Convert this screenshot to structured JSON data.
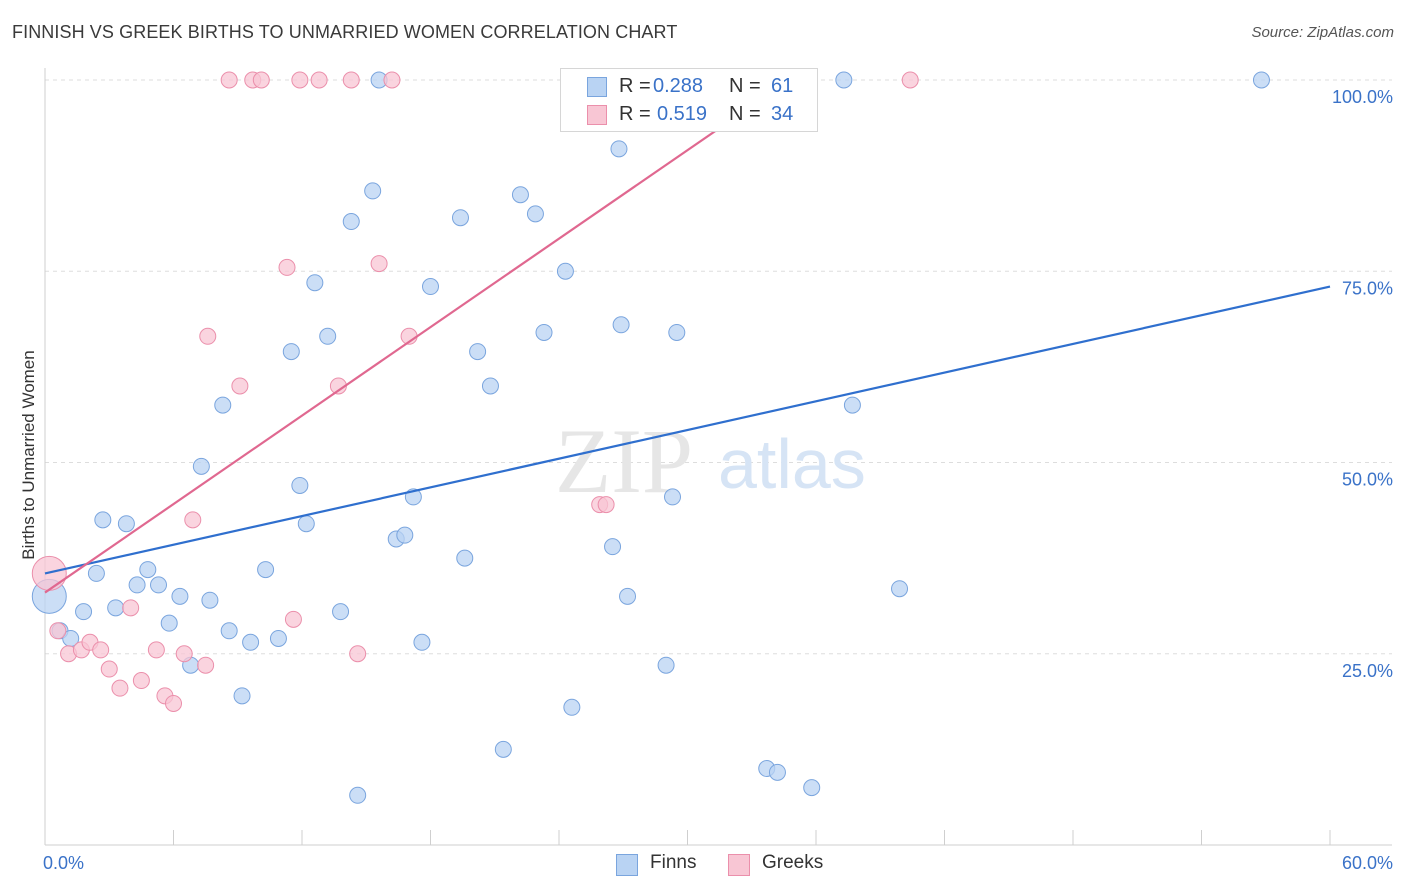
{
  "title": "FINNISH VS GREEK BIRTHS TO UNMARRIED WOMEN CORRELATION CHART",
  "source": "Source: ZipAtlas.com",
  "watermark": {
    "zip": "ZIP",
    "atlas": "atlas"
  },
  "legend": {
    "finns": {
      "r_label": "R =",
      "r_value": "0.288",
      "n_label": "N =",
      "n_value": "61"
    },
    "greeks": {
      "r_label": "R =",
      "r_value": "0.519",
      "n_label": "N =",
      "n_value": "34"
    }
  },
  "bottom_legend": {
    "finns": "Finns",
    "greeks": "Greeks"
  },
  "colors": {
    "finns_fill": "#b9d3f3",
    "finns_stroke": "#7aa5de",
    "finns_line": "#2f6fce",
    "greeks_fill": "#f8c6d4",
    "greeks_stroke": "#eb8fab",
    "greeks_line": "#e06890",
    "tick_label": "#3a72c8",
    "grid": "#dddddd"
  },
  "chart_data": {
    "type": "scatter",
    "title": "FINNISH VS GREEK BIRTHS TO UNMARRIED WOMEN CORRELATION CHART",
    "xlabel": "",
    "ylabel": "Births to Unmarried Women",
    "xlim": [
      0,
      60
    ],
    "ylim": [
      0,
      105
    ],
    "x_tick_labels": [
      "0.0%",
      "60.0%"
    ],
    "y_ticks": [
      25,
      50,
      75,
      100
    ],
    "y_tick_labels": [
      "25.0%",
      "50.0%",
      "75.0%",
      "100.0%"
    ],
    "series": [
      {
        "name": "Finns",
        "r": 0.288,
        "n": 61,
        "trend": {
          "x": [
            0,
            60
          ],
          "y": [
            35.5,
            73
          ]
        },
        "points": [
          {
            "x": 0.2,
            "y": 32.5,
            "big": true
          },
          {
            "x": 0.7,
            "y": 28
          },
          {
            "x": 1.2,
            "y": 27
          },
          {
            "x": 1.8,
            "y": 30.5
          },
          {
            "x": 2.4,
            "y": 35.5
          },
          {
            "x": 2.7,
            "y": 42.5
          },
          {
            "x": 3.3,
            "y": 31
          },
          {
            "x": 3.8,
            "y": 42
          },
          {
            "x": 4.3,
            "y": 34
          },
          {
            "x": 4.8,
            "y": 36
          },
          {
            "x": 5.3,
            "y": 34
          },
          {
            "x": 5.8,
            "y": 29
          },
          {
            "x": 6.3,
            "y": 32.5
          },
          {
            "x": 6.8,
            "y": 23.5
          },
          {
            "x": 7.3,
            "y": 49.5
          },
          {
            "x": 7.7,
            "y": 32
          },
          {
            "x": 8.3,
            "y": 57.5
          },
          {
            "x": 8.6,
            "y": 28
          },
          {
            "x": 9.2,
            "y": 19.5
          },
          {
            "x": 9.6,
            "y": 26.5
          },
          {
            "x": 10.3,
            "y": 36
          },
          {
            "x": 10.9,
            "y": 27
          },
          {
            "x": 11.5,
            "y": 64.5
          },
          {
            "x": 11.9,
            "y": 47
          },
          {
            "x": 12.2,
            "y": 42
          },
          {
            "x": 12.6,
            "y": 73.5
          },
          {
            "x": 13.2,
            "y": 66.5
          },
          {
            "x": 13.8,
            "y": 30.5
          },
          {
            "x": 14.3,
            "y": 81.5
          },
          {
            "x": 14.6,
            "y": 6.5
          },
          {
            "x": 15.3,
            "y": 85.5
          },
          {
            "x": 15.6,
            "y": 100
          },
          {
            "x": 16.4,
            "y": 40
          },
          {
            "x": 16.8,
            "y": 40.5
          },
          {
            "x": 17.2,
            "y": 45.5
          },
          {
            "x": 17.6,
            "y": 26.5
          },
          {
            "x": 18.0,
            "y": 73
          },
          {
            "x": 19.4,
            "y": 82
          },
          {
            "x": 19.6,
            "y": 37.5
          },
          {
            "x": 20.2,
            "y": 64.5
          },
          {
            "x": 20.8,
            "y": 60
          },
          {
            "x": 21.4,
            "y": 12.5
          },
          {
            "x": 22.2,
            "y": 85
          },
          {
            "x": 22.9,
            "y": 82.5
          },
          {
            "x": 23.3,
            "y": 67
          },
          {
            "x": 24.3,
            "y": 75
          },
          {
            "x": 24.6,
            "y": 18
          },
          {
            "x": 26.8,
            "y": 91
          },
          {
            "x": 26.5,
            "y": 39
          },
          {
            "x": 27.2,
            "y": 32.5
          },
          {
            "x": 26.9,
            "y": 68
          },
          {
            "x": 29.0,
            "y": 23.5
          },
          {
            "x": 29.5,
            "y": 67
          },
          {
            "x": 29.3,
            "y": 45.5
          },
          {
            "x": 33.7,
            "y": 10
          },
          {
            "x": 34.2,
            "y": 9.5
          },
          {
            "x": 35.8,
            "y": 7.5
          },
          {
            "x": 37.3,
            "y": 100
          },
          {
            "x": 37.7,
            "y": 57.5
          },
          {
            "x": 39.9,
            "y": 33.5
          },
          {
            "x": 56.8,
            "y": 100
          }
        ]
      },
      {
        "name": "Greeks",
        "r": 0.519,
        "n": 34,
        "trend": {
          "x": [
            0,
            34.5
          ],
          "y": [
            33,
            99.5
          ]
        },
        "points": [
          {
            "x": 0.2,
            "y": 35.5,
            "big": true
          },
          {
            "x": 0.6,
            "y": 28
          },
          {
            "x": 1.1,
            "y": 25
          },
          {
            "x": 1.7,
            "y": 25.5
          },
          {
            "x": 2.1,
            "y": 26.5
          },
          {
            "x": 2.6,
            "y": 25.5
          },
          {
            "x": 3.0,
            "y": 23
          },
          {
            "x": 3.5,
            "y": 20.5
          },
          {
            "x": 4.0,
            "y": 31
          },
          {
            "x": 4.5,
            "y": 21.5
          },
          {
            "x": 5.2,
            "y": 25.5
          },
          {
            "x": 5.6,
            "y": 19.5
          },
          {
            "x": 6.0,
            "y": 18.5
          },
          {
            "x": 6.5,
            "y": 25
          },
          {
            "x": 6.9,
            "y": 42.5
          },
          {
            "x": 7.5,
            "y": 23.5
          },
          {
            "x": 7.6,
            "y": 66.5
          },
          {
            "x": 8.6,
            "y": 100
          },
          {
            "x": 9.1,
            "y": 60
          },
          {
            "x": 9.7,
            "y": 100
          },
          {
            "x": 10.1,
            "y": 100
          },
          {
            "x": 11.3,
            "y": 75.5
          },
          {
            "x": 11.6,
            "y": 29.5
          },
          {
            "x": 11.9,
            "y": 100
          },
          {
            "x": 12.8,
            "y": 100
          },
          {
            "x": 13.7,
            "y": 60
          },
          {
            "x": 14.3,
            "y": 100
          },
          {
            "x": 14.6,
            "y": 25
          },
          {
            "x": 15.6,
            "y": 76
          },
          {
            "x": 16.2,
            "y": 100
          },
          {
            "x": 17.0,
            "y": 66.5
          },
          {
            "x": 25.9,
            "y": 44.5
          },
          {
            "x": 26.2,
            "y": 44.5
          },
          {
            "x": 40.4,
            "y": 100
          }
        ]
      }
    ]
  }
}
